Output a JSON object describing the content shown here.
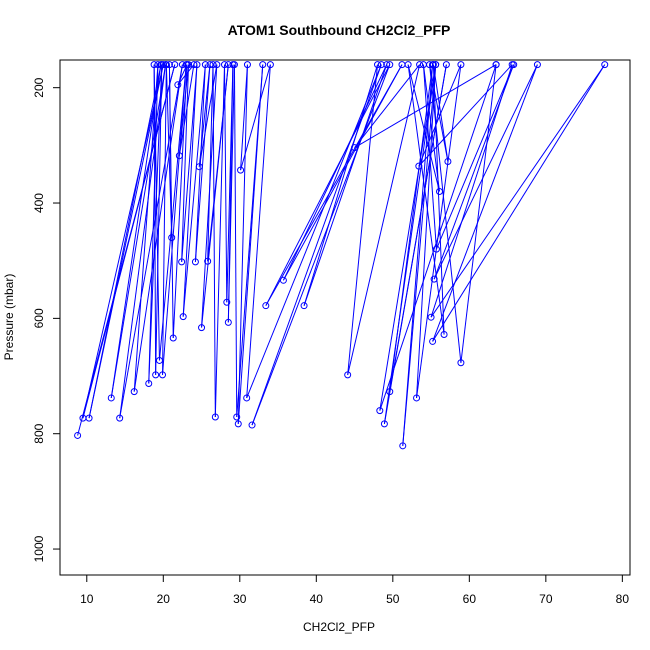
{
  "chart_data": {
    "type": "line",
    "title": "ATOM1 Southbound CH2Cl2_PFP",
    "xlabel": "CH2Cl2_PFP",
    "ylabel": "Pressure (mbar)",
    "xlim": [
      6.5,
      81
    ],
    "ylim": [
      1045,
      152
    ],
    "y_reversed": true,
    "grid": false,
    "legend": "none",
    "x_ticks": [
      10,
      20,
      30,
      40,
      50,
      60,
      70,
      80
    ],
    "y_ticks": [
      200,
      400,
      600,
      800,
      1000
    ],
    "series_color": "#0000ff",
    "marker": "open-circle",
    "series": [
      {
        "x": [
          8.8,
          21.5,
          9.5,
          20.0,
          10.3,
          19.7,
          13.2,
          20.3,
          14.3,
          22.5,
          16.2,
          19.3,
          18.1,
          19.8,
          19.0,
          18.8,
          19.5,
          23.0,
          19.9,
          20.4,
          21.1,
          20.8,
          21.3,
          23.1,
          21.9,
          24.0,
          22.1,
          23.3,
          22.4,
          24.4,
          22.6,
          25.5,
          24.2,
          26.1,
          24.7,
          27.0,
          25.0,
          28.5,
          25.8,
          26.5,
          26.8,
          28.0,
          28.3,
          29.1,
          28.5,
          29.3,
          29.6,
          33.0,
          29.8,
          31.0,
          30.1,
          34.0,
          30.9,
          48.5,
          31.6,
          49.6,
          33.4,
          51.2,
          35.7,
          49.2,
          38.4,
          48.0,
          44.1,
          53.5,
          45.0,
          63.5,
          48.3,
          55.6,
          48.9,
          57.0,
          49.6,
          55.2,
          51.3,
          55.6,
          53.1,
          58.9,
          53.4,
          65.6,
          55.0,
          77.7,
          55.2,
          68.9,
          55.4,
          65.8,
          55.7,
          54.0,
          56.1,
          52.0,
          56.7,
          55.3,
          57.2,
          54.8,
          58.9,
          63.5
        ],
        "y": [
          803,
          160,
          773,
          160,
          773,
          160,
          738,
          160,
          773,
          160,
          727,
          160,
          713,
          160,
          698,
          160,
          673,
          160,
          698,
          160,
          460,
          160,
          634,
          160,
          195,
          160,
          318,
          160,
          502,
          160,
          597,
          160,
          502,
          160,
          337,
          160,
          616,
          160,
          501,
          160,
          771,
          160,
          572,
          160,
          607,
          160,
          771,
          160,
          783,
          160,
          343,
          160,
          738,
          160,
          785,
          160,
          578,
          160,
          534,
          160,
          578,
          160,
          698,
          160,
          304,
          160,
          760,
          160,
          783,
          160,
          727,
          160,
          821,
          160,
          738,
          160,
          336,
          160,
          598,
          160,
          640,
          160,
          532,
          160,
          480,
          160,
          380,
          160,
          628,
          160,
          328,
          160,
          677,
          160
        ]
      }
    ]
  }
}
